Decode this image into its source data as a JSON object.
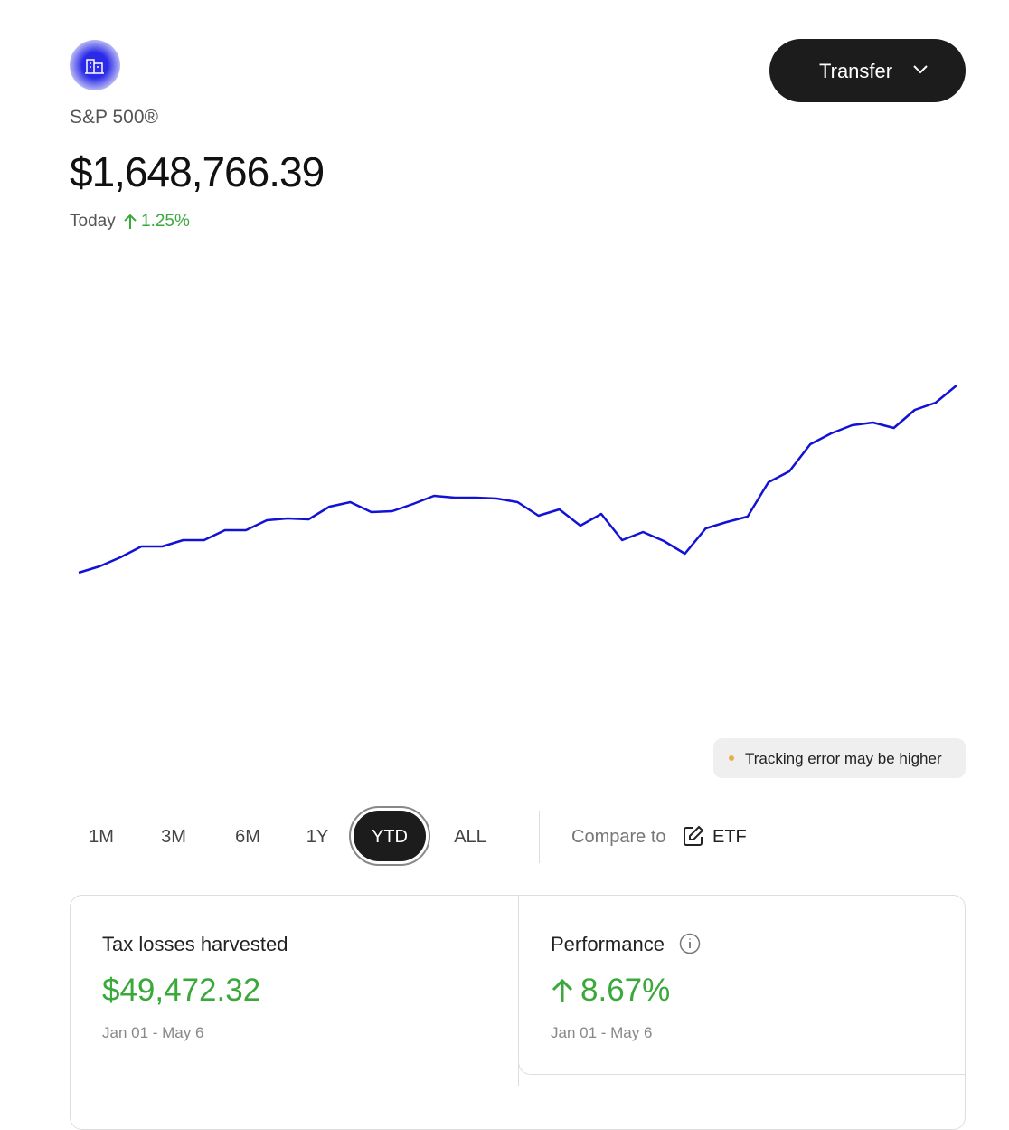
{
  "header": {
    "name": "S&P 500®",
    "value": "$1,648,766.39",
    "today_label": "Today",
    "today_change": "1.25%"
  },
  "transfer_button": "Transfer",
  "chart_data": {
    "type": "line",
    "color": "#1212d6",
    "ylim": [
      -60,
      400
    ],
    "values": [
      67,
      74,
      84,
      96,
      96,
      103,
      103,
      114,
      114,
      125,
      127,
      126,
      140,
      145,
      134,
      135,
      143,
      152,
      150,
      150,
      149,
      145,
      130,
      137,
      119,
      132,
      103,
      112,
      102,
      88,
      116,
      123,
      129,
      167,
      179,
      209,
      221,
      230,
      233,
      227,
      247,
      255,
      274
    ]
  },
  "badge": "Tracking error may be higher",
  "ranges": [
    "1M",
    "3M",
    "6M",
    "1Y",
    "YTD",
    "ALL"
  ],
  "compare": {
    "label": "Compare to",
    "value": "ETF"
  },
  "cards": [
    {
      "title": "Tax losses harvested",
      "value": "$49,472.32",
      "period": "Jan 01 - May 6"
    },
    {
      "title": "Performance",
      "value": "8.67%",
      "period": "Jan 01 - May 6"
    }
  ]
}
